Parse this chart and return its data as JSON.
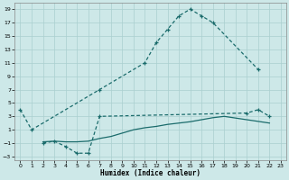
{
  "xlabel": "Humidex (Indice chaleur)",
  "background_color": "#cde8e8",
  "grid_color": "#aacfcf",
  "line_color": "#1a6b6b",
  "xlim": [
    -0.5,
    23.5
  ],
  "ylim": [
    -3.5,
    20
  ],
  "xticks": [
    0,
    1,
    2,
    3,
    4,
    5,
    6,
    7,
    8,
    9,
    10,
    11,
    12,
    13,
    14,
    15,
    16,
    17,
    18,
    19,
    20,
    21,
    22,
    23
  ],
  "yticks": [
    -3,
    -1,
    1,
    3,
    5,
    7,
    9,
    11,
    13,
    15,
    17,
    19
  ],
  "line1_x": [
    0,
    1,
    7,
    11,
    12,
    13,
    14,
    15,
    16,
    17,
    21
  ],
  "line1_y": [
    4,
    1,
    7,
    11,
    14,
    16,
    18,
    19,
    18,
    17,
    10
  ],
  "line2_x": [
    2,
    3,
    4,
    5,
    6,
    7,
    20,
    21,
    22
  ],
  "line2_y": [
    -1,
    -0.7,
    -1.5,
    -2.5,
    -2.5,
    3,
    3.5,
    4,
    3
  ],
  "line3_x": [
    2,
    3,
    4,
    5,
    6,
    7,
    8,
    9,
    10,
    11,
    12,
    13,
    14,
    15,
    16,
    17,
    18,
    22
  ],
  "line3_y": [
    -0.8,
    -0.7,
    -0.8,
    -0.8,
    -0.7,
    -0.3,
    0,
    0.5,
    1,
    1.3,
    1.5,
    1.8,
    2,
    2.2,
    2.5,
    2.8,
    3,
    2
  ]
}
